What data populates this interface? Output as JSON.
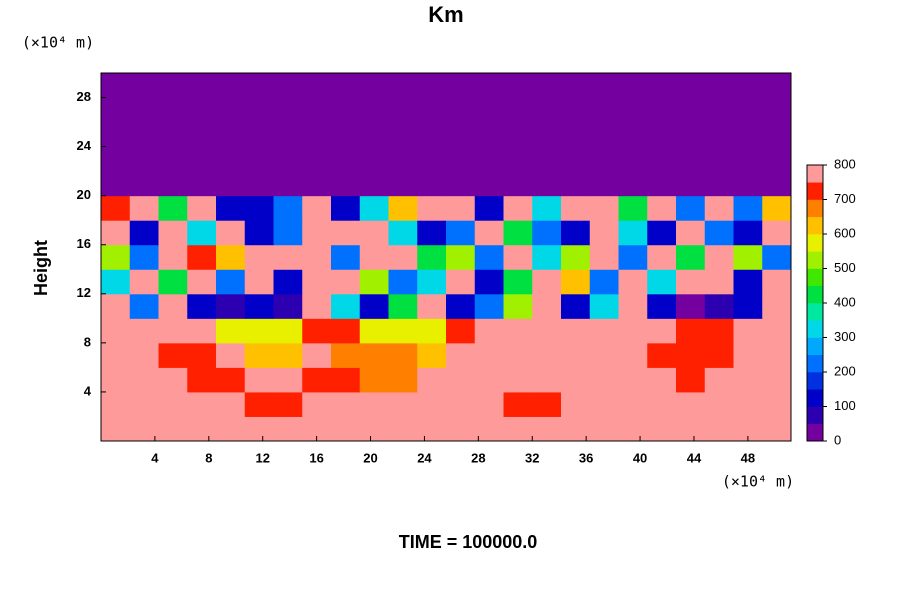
{
  "chart_data": {
    "type": "heatmap",
    "title": "Km",
    "subtitle": "TIME = 100000.0",
    "x_label": "(×10⁴ m)",
    "y_label": "Height",
    "y_unit_label": "(×10⁴ m)",
    "xlim": [
      0,
      51.2
    ],
    "ylim": [
      0,
      30
    ],
    "xticks": [
      4,
      8,
      12,
      16,
      20,
      24,
      28,
      32,
      36,
      40,
      44,
      48
    ],
    "yticks": [
      4,
      8,
      12,
      16,
      20,
      24,
      28
    ],
    "colorbar": {
      "clim": [
        0,
        800
      ],
      "ticks": [
        0,
        100,
        200,
        300,
        400,
        500,
        600,
        700,
        800
      ],
      "colors": [
        "#7400a0",
        "#2c00b0",
        "#0000c8",
        "#0030e0",
        "#0070ff",
        "#00a8ff",
        "#00d8e8",
        "#00e8a0",
        "#00e040",
        "#40e800",
        "#a0f000",
        "#e8f000",
        "#ffc000",
        "#ff8000",
        "#ff2000",
        "#ff9a9a"
      ]
    },
    "z": [
      [
        800,
        800,
        800,
        800,
        800,
        800,
        800,
        800,
        800,
        800,
        800,
        800,
        800,
        800,
        800,
        800,
        800,
        800,
        800,
        800,
        800,
        800,
        800,
        800
      ],
      [
        800,
        800,
        800,
        800,
        800,
        700,
        700,
        800,
        800,
        800,
        800,
        800,
        800,
        800,
        700,
        700,
        800,
        800,
        800,
        800,
        800,
        800,
        800,
        800
      ],
      [
        800,
        800,
        800,
        700,
        700,
        750,
        750,
        700,
        700,
        650,
        650,
        800,
        800,
        800,
        800,
        800,
        800,
        800,
        800,
        800,
        700,
        800,
        800,
        800
      ],
      [
        800,
        800,
        700,
        700,
        800,
        600,
        600,
        800,
        650,
        650,
        650,
        600,
        800,
        800,
        800,
        800,
        800,
        800,
        800,
        700,
        700,
        700,
        800,
        800
      ],
      [
        800,
        750,
        750,
        800,
        550,
        550,
        550,
        700,
        700,
        550,
        550,
        550,
        700,
        800,
        800,
        800,
        800,
        800,
        800,
        800,
        700,
        700,
        800,
        800
      ],
      [
        800,
        200,
        800,
        100,
        50,
        100,
        50,
        800,
        300,
        100,
        400,
        800,
        100,
        200,
        500,
        800,
        100,
        300,
        800,
        100,
        0,
        50,
        100,
        800
      ],
      [
        300,
        800,
        400,
        800,
        200,
        800,
        100,
        800,
        800,
        500,
        200,
        300,
        800,
        100,
        400,
        800,
        600,
        200,
        800,
        300,
        800,
        800,
        100,
        800
      ],
      [
        500,
        200,
        800,
        700,
        600,
        800,
        800,
        800,
        200,
        800,
        800,
        400,
        500,
        200,
        800,
        300,
        500,
        800,
        200,
        800,
        400,
        800,
        500,
        200
      ],
      [
        800,
        100,
        800,
        300,
        800,
        100,
        200,
        800,
        800,
        800,
        300,
        100,
        200,
        800,
        400,
        200,
        100,
        800,
        300,
        100,
        800,
        200,
        100,
        800
      ],
      [
        700,
        800,
        400,
        800,
        100,
        100,
        200,
        800,
        100,
        300,
        600,
        800,
        800,
        100,
        800,
        300,
        800,
        800,
        400,
        800,
        200,
        800,
        200,
        600
      ],
      [
        0,
        0,
        0,
        0,
        0,
        0,
        0,
        0,
        0,
        0,
        0,
        0,
        0,
        0,
        0,
        0,
        0,
        0,
        0,
        0,
        0,
        0,
        0,
        0
      ],
      [
        0,
        0,
        0,
        0,
        0,
        0,
        0,
        0,
        0,
        0,
        0,
        0,
        0,
        0,
        0,
        0,
        0,
        0,
        0,
        0,
        0,
        0,
        0,
        0
      ],
      [
        0,
        0,
        0,
        0,
        0,
        0,
        0,
        0,
        0,
        0,
        0,
        0,
        0,
        0,
        0,
        0,
        0,
        0,
        0,
        0,
        0,
        0,
        0,
        0
      ],
      [
        0,
        0,
        0,
        0,
        0,
        0,
        0,
        0,
        0,
        0,
        0,
        0,
        0,
        0,
        0,
        0,
        0,
        0,
        0,
        0,
        0,
        0,
        0,
        0
      ],
      [
        0,
        0,
        0,
        0,
        0,
        0,
        0,
        0,
        0,
        0,
        0,
        0,
        0,
        0,
        0,
        0,
        0,
        0,
        0,
        0,
        0,
        0,
        0,
        0
      ]
    ]
  }
}
